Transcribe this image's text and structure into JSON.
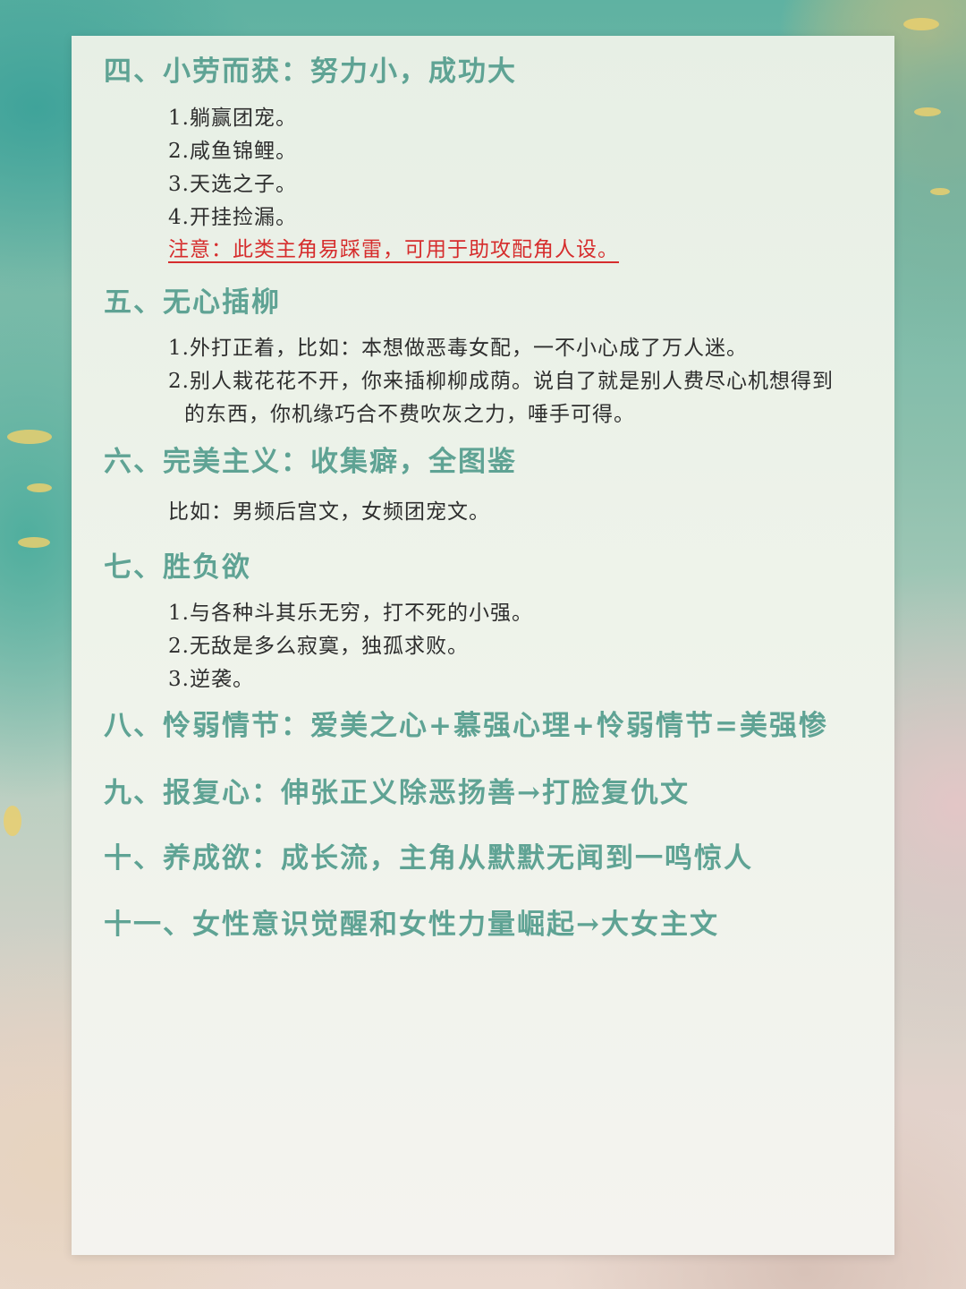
{
  "sections": {
    "s4": {
      "heading": "四、小劳而获：努力小，成功大",
      "items": [
        "1.躺赢团宠。",
        "2.咸鱼锦鲤。",
        "3.天选之子。",
        "4.开挂捡漏。"
      ],
      "note": "注意：此类主角易踩雷，可用于助攻配角人设。"
    },
    "s5": {
      "heading": "五、无心插柳",
      "items": [
        "1.外打正着，比如：本想做恶毒女配，一不小心成了万人迷。",
        "2.别人栽花花不开，你来插柳柳成荫。说自了就是别人费尽心机想得到",
        "的东西，你机缘巧合不费吹灰之力，唾手可得。"
      ]
    },
    "s6": {
      "heading": "六、完美主义：收集癖，全图鉴",
      "items": [
        "比如：男频后宫文，女频团宠文。"
      ]
    },
    "s7": {
      "heading": "七、胜负欲",
      "items": [
        "1.与各种斗其乐无穷，打不死的小强。",
        "2.无敌是多么寂寞，独孤求败。",
        "3.逆袭。"
      ]
    },
    "s8": {
      "heading": "八、怜弱情节：爱美之心+慕强心理+怜弱情节=美强惨"
    },
    "s9": {
      "heading": "九、报复心：伸张正义除恶扬善→打脸复仇文"
    },
    "s10": {
      "heading": "十、养成欲：成长流，主角从默默无闻到一鸣惊人"
    },
    "s11": {
      "heading": "十一、女性意识觉醒和女性力量崛起→大女主文"
    }
  },
  "colors": {
    "heading": "#5fa394",
    "body": "#2e2e2e",
    "note": "#d62d2d"
  }
}
